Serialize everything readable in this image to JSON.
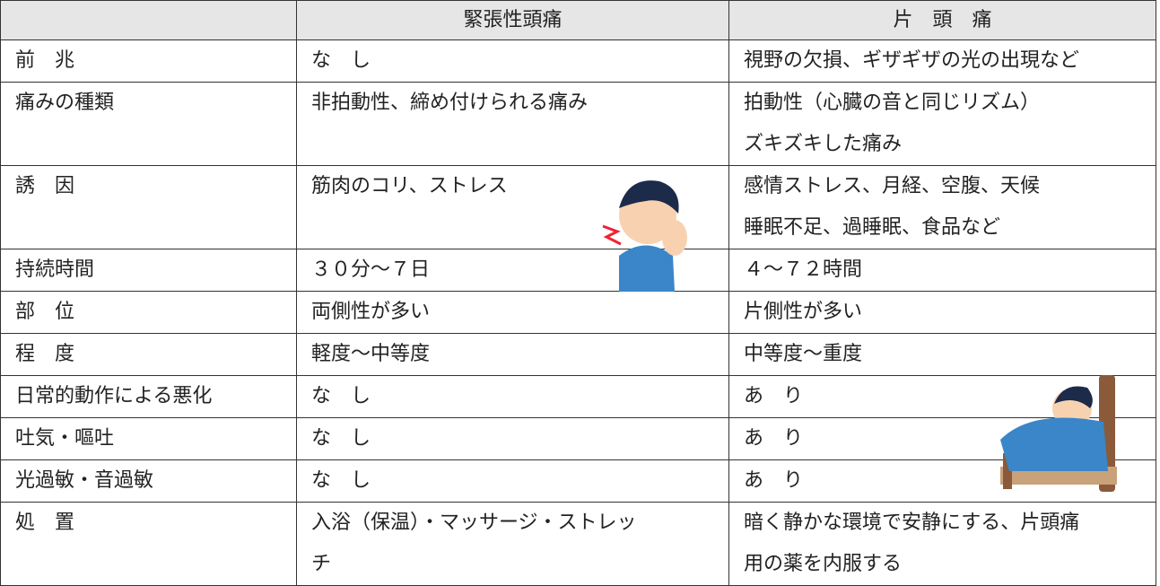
{
  "table": {
    "header": [
      "緊張性頭痛",
      "片　頭　痛"
    ],
    "rows": [
      [
        [
          "前　兆"
        ],
        [
          "な　し"
        ],
        [
          "視野の欠損、ギザギザの光の出現など"
        ]
      ],
      [
        [
          "痛みの種類"
        ],
        [
          "非拍動性、締め付けられる痛み"
        ],
        [
          "拍動性（心臓の音と同じリズム）",
          "ズキズキした痛み"
        ]
      ],
      [
        [
          "誘　因"
        ],
        [
          "筋肉のコリ、ストレス"
        ],
        [
          "感情ストレス、月経、空腹、天候",
          "睡眠不足、過睡眠、食品など"
        ]
      ],
      [
        [
          "持続時間"
        ],
        [
          "３０分～７日"
        ],
        [
          "４～７２時間"
        ]
      ],
      [
        [
          "部　位"
        ],
        [
          "両側性が多い"
        ],
        [
          "片側性が多い"
        ]
      ],
      [
        [
          "程　度"
        ],
        [
          "軽度～中等度"
        ],
        [
          "中等度～重度"
        ]
      ],
      [
        [
          "日常的動作による悪化"
        ],
        [
          "な　し"
        ],
        [
          "あ　り"
        ]
      ],
      [
        [
          "吐気・嘔吐"
        ],
        [
          "な　し"
        ],
        [
          "あ　り"
        ]
      ],
      [
        [
          "光過敏・音過敏"
        ],
        [
          "な　し"
        ],
        [
          "あ　り"
        ]
      ],
      [
        [
          "処　置"
        ],
        [
          "入浴（保温）・マッサージ・ストレッ",
          "チ"
        ],
        [
          "暗く静かな環境で安静にする、片頭痛",
          "用の薬を内服する"
        ]
      ]
    ]
  }
}
